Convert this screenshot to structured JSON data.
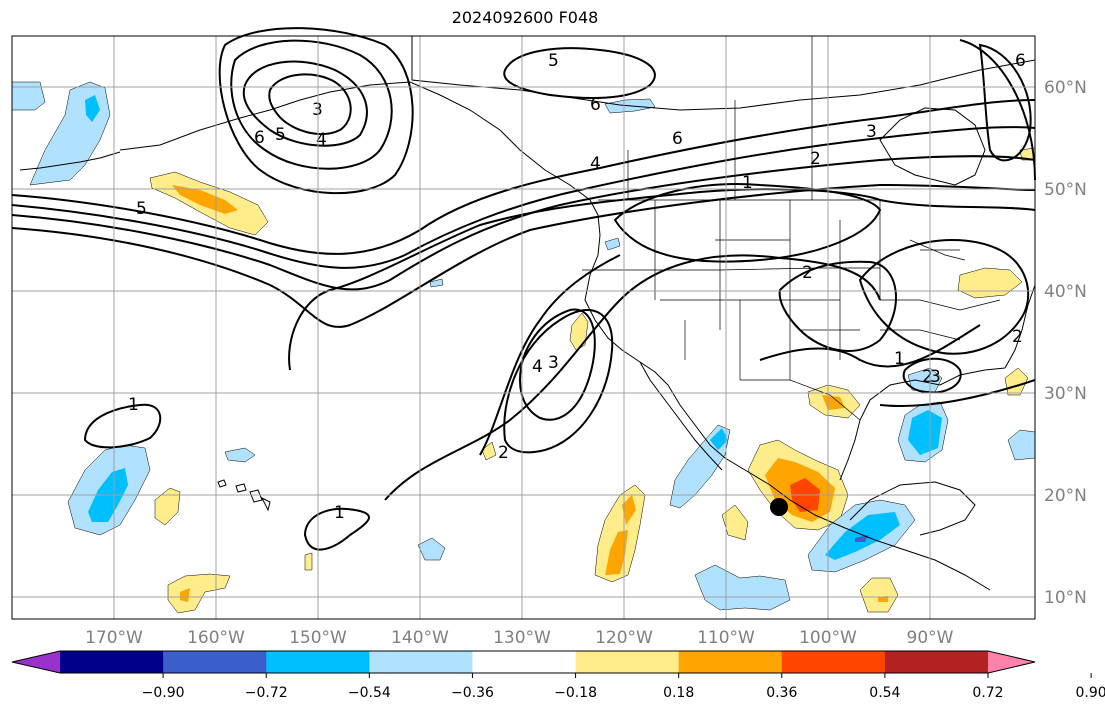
{
  "title": "2024092600 F048",
  "lon_ticks": [
    "170°W",
    "160°W",
    "150°W",
    "140°W",
    "130°W",
    "120°W",
    "110°W",
    "100°W",
    "90°W"
  ],
  "lat_ticks": [
    "60°N",
    "50°N",
    "40°N",
    "30°N",
    "20°N",
    "10°N"
  ],
  "colorbar": {
    "colors": [
      "#9932cc",
      "#00008b",
      "#3a5fcd",
      "#00bfff",
      "#b0e2ff",
      "#ffffff",
      "#ffec8b",
      "#ffa500",
      "#ff4500",
      "#b22222",
      "#ff82ab"
    ],
    "tick_labels": [
      "−0.90",
      "−0.72",
      "−0.54",
      "−0.36",
      "−0.18",
      "0.18",
      "0.36",
      "0.54",
      "0.72",
      "0.90"
    ]
  },
  "contour_labels": [
    "5",
    "6",
    "3",
    "4",
    "5",
    "6",
    "5",
    "6",
    "6",
    "4",
    "3",
    "2",
    "1",
    "2",
    "1",
    "2",
    "2",
    "3",
    "4",
    "3",
    "2",
    "1",
    "1"
  ],
  "marker": "storm-center-dot"
}
